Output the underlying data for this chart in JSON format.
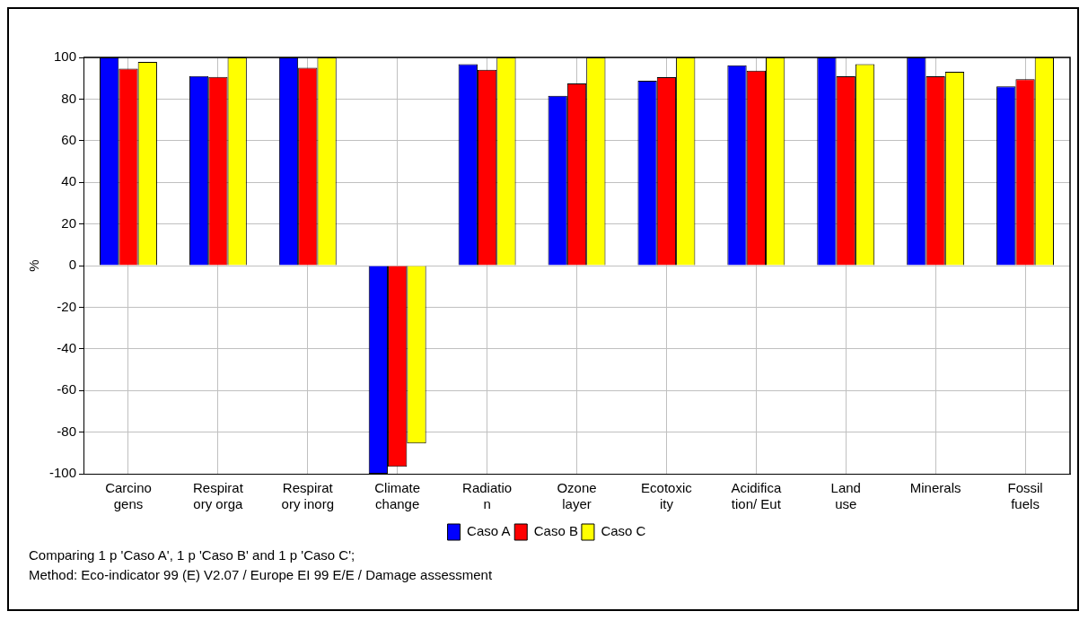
{
  "chart_data": {
    "type": "bar",
    "ylabel": "%",
    "categories": [
      "Carcino\ngens",
      "Respirat\nory orga",
      "Respirat\nory inorg",
      "Climate\nchange",
      "Radiatio\nn",
      "Ozone\nlayer",
      "Ecotoxic\nity",
      "Acidifica\ntion/ Eut",
      "Land\nuse",
      "Minerals",
      "Fossil\nfuels"
    ],
    "series": [
      {
        "name": "Caso A",
        "color": "#0000ff",
        "values": [
          100,
          91.1,
          100,
          -100,
          96.8,
          81.6,
          88.8,
          96.2,
          100,
          100,
          86.1
        ]
      },
      {
        "name": "Caso B",
        "color": "#ff0000",
        "values": [
          94.6,
          90.6,
          95.0,
          -96.7,
          94.1,
          87.5,
          90.5,
          93.6,
          91.0,
          91.0,
          89.6
        ]
      },
      {
        "name": "Caso C",
        "color": "#ffff00",
        "values": [
          97.8,
          100,
          100,
          -85.5,
          100,
          100,
          100,
          100,
          96.8,
          93.1,
          100
        ]
      }
    ],
    "ylim": [
      -100,
      100
    ],
    "yticks": [
      -100,
      -80,
      -60,
      -40,
      -20,
      0,
      20,
      40,
      60,
      80,
      100
    ],
    "grid": true,
    "legend": "bottom",
    "annotations": [
      "Comparing 1 p 'Caso A', 1 p 'Caso B' and 1 p 'Caso C';",
      "Method: Eco-indicator 99 (E) V2.07 / Europe EI 99 E/E / Damage assessment"
    ]
  }
}
